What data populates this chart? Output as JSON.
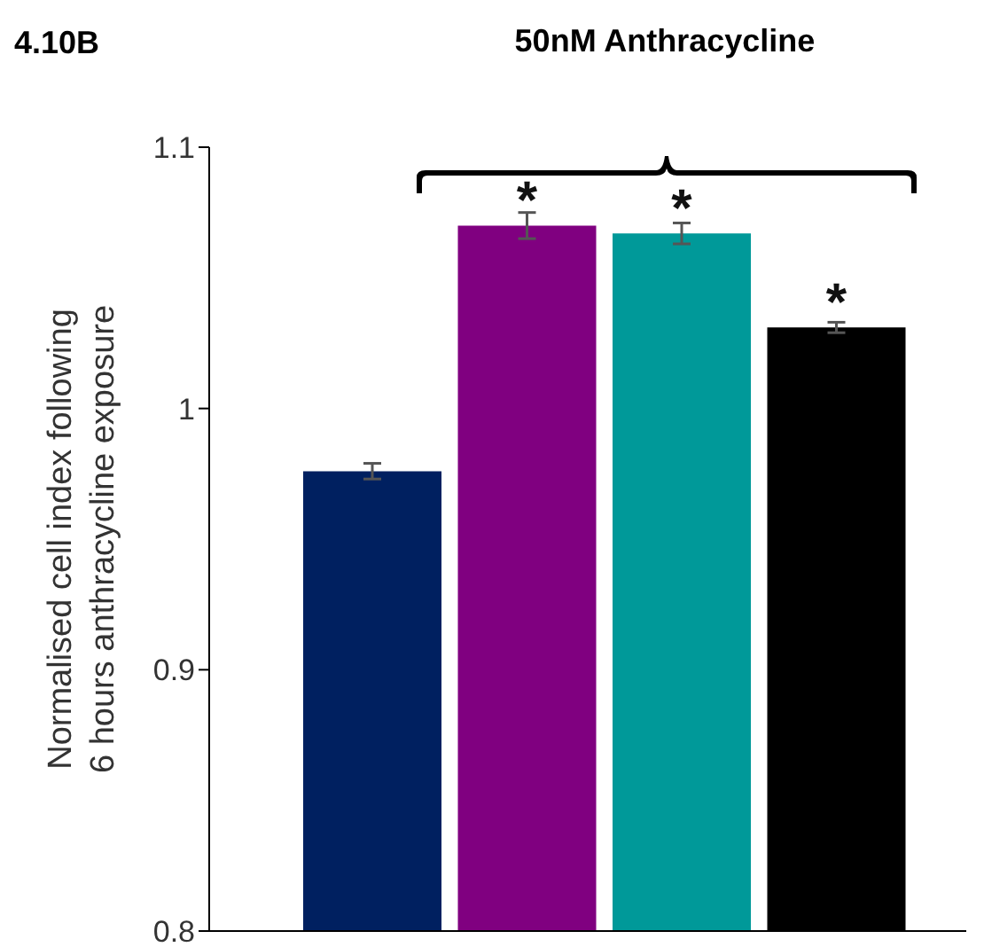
{
  "chart_data": {
    "type": "bar",
    "title": "4.10B",
    "ylabel": "Normalised cell index following 6 hours anthracycline exposure",
    "annotations": [
      "50nM Anthracycline"
    ],
    "categories": [
      null,
      null,
      null,
      null
    ],
    "values": [
      0.976,
      1.07,
      1.067,
      1.031
    ],
    "colors": [
      "#002060",
      "#800080",
      "#009999",
      "#000000"
    ],
    "errors": [
      0.003,
      0.005,
      0.004,
      0.002
    ],
    "value_labels": [
      null,
      "*",
      "*",
      "*"
    ],
    "ylim": [
      0.8,
      1.1
    ],
    "yticks": [
      0.8,
      0.9,
      1,
      1.1
    ],
    "grid": false,
    "legend": false
  }
}
